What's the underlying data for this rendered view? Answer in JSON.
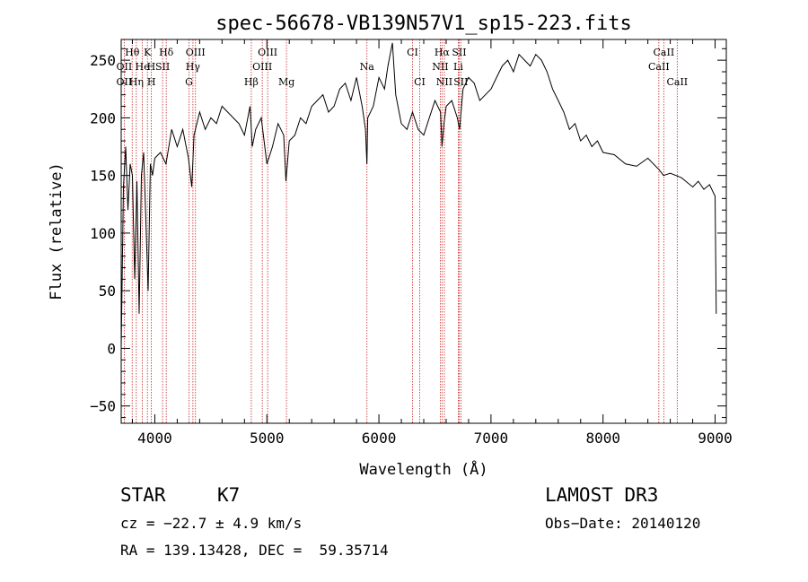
{
  "chart_data": {
    "type": "line",
    "title": "spec-56678-VB139N57V1_sp15-223.fits",
    "xlabel": "Wavelength (Å)",
    "ylabel": "Flux (relative)",
    "xlim": [
      3700,
      9100
    ],
    "ylim": [
      -65,
      268
    ],
    "xticks": [
      4000,
      5000,
      6000,
      7000,
      8000,
      9000
    ],
    "yticks": [
      -50,
      0,
      50,
      100,
      150,
      200,
      250
    ],
    "grid": false,
    "series": [
      {
        "name": "flux",
        "x": [
          3700,
          3720,
          3740,
          3760,
          3780,
          3800,
          3820,
          3840,
          3860,
          3880,
          3900,
          3920,
          3940,
          3960,
          3980,
          4000,
          4050,
          4100,
          4150,
          4200,
          4250,
          4300,
          4330,
          4350,
          4400,
          4450,
          4500,
          4550,
          4600,
          4650,
          4700,
          4750,
          4800,
          4850,
          4870,
          4900,
          4950,
          5000,
          5050,
          5100,
          5150,
          5170,
          5200,
          5250,
          5300,
          5350,
          5400,
          5450,
          5500,
          5550,
          5600,
          5650,
          5700,
          5750,
          5800,
          5850,
          5880,
          5893,
          5900,
          5950,
          6000,
          6050,
          6080,
          6100,
          6120,
          6150,
          6200,
          6250,
          6300,
          6350,
          6400,
          6450,
          6500,
          6550,
          6563,
          6580,
          6600,
          6650,
          6700,
          6720,
          6750,
          6800,
          6850,
          6900,
          6950,
          7000,
          7050,
          7100,
          7150,
          7200,
          7250,
          7300,
          7350,
          7400,
          7450,
          7500,
          7550,
          7600,
          7650,
          7700,
          7750,
          7800,
          7850,
          7900,
          7950,
          8000,
          8100,
          8200,
          8300,
          8400,
          8500,
          8540,
          8600,
          8700,
          8800,
          8850,
          8900,
          8950,
          9000,
          9010
        ],
        "y": [
          0,
          140,
          175,
          120,
          160,
          150,
          60,
          145,
          30,
          150,
          170,
          110,
          50,
          160,
          150,
          165,
          170,
          160,
          190,
          175,
          190,
          165,
          140,
          185,
          205,
          190,
          200,
          195,
          210,
          205,
          200,
          195,
          185,
          210,
          175,
          190,
          200,
          160,
          175,
          195,
          185,
          145,
          180,
          185,
          200,
          195,
          210,
          215,
          220,
          205,
          210,
          225,
          230,
          215,
          235,
          210,
          190,
          160,
          200,
          210,
          235,
          225,
          245,
          255,
          265,
          220,
          195,
          190,
          205,
          190,
          185,
          200,
          215,
          205,
          175,
          195,
          210,
          215,
          200,
          190,
          225,
          235,
          230,
          215,
          220,
          225,
          235,
          245,
          250,
          240,
          255,
          250,
          245,
          255,
          250,
          240,
          225,
          215,
          205,
          190,
          195,
          180,
          185,
          175,
          180,
          170,
          168,
          160,
          158,
          165,
          155,
          150,
          152,
          148,
          140,
          145,
          138,
          142,
          132,
          30
        ]
      }
    ],
    "line_labels": [
      {
        "text": "Hθ",
        "x": 3798,
        "row": 1
      },
      {
        "text": "K",
        "x": 3934,
        "row": 1
      },
      {
        "text": "Hδ",
        "x": 4102,
        "row": 1
      },
      {
        "text": "OIII",
        "x": 4363,
        "row": 1
      },
      {
        "text": "OIII",
        "x": 5007,
        "row": 1
      },
      {
        "text": "CI",
        "x": 6300,
        "row": 1
      },
      {
        "text": "Hα",
        "x": 6563,
        "row": 1
      },
      {
        "text": "SII",
        "x": 6716,
        "row": 1
      },
      {
        "text": "CaII",
        "x": 8542,
        "row": 1
      },
      {
        "text": "OII",
        "x": 3727,
        "row": 2
      },
      {
        "text": "He",
        "x": 3889,
        "row": 2
      },
      {
        "text": "H",
        "x": 3968,
        "row": 2
      },
      {
        "text": "SII",
        "x": 4069,
        "row": 2
      },
      {
        "text": "Hγ",
        "x": 4340,
        "row": 2
      },
      {
        "text": "OIII",
        "x": 4959,
        "row": 2
      },
      {
        "text": "Na",
        "x": 5893,
        "row": 2
      },
      {
        "text": "NII",
        "x": 6548,
        "row": 2
      },
      {
        "text": "Li",
        "x": 6708,
        "row": 2
      },
      {
        "text": "CaII",
        "x": 8498,
        "row": 2
      },
      {
        "text": "OII",
        "x": 3727,
        "row": 3
      },
      {
        "text": "Hη",
        "x": 3835,
        "row": 3
      },
      {
        "text": "H",
        "x": 3970,
        "row": 3
      },
      {
        "text": "G",
        "x": 4305,
        "row": 3
      },
      {
        "text": "Hβ",
        "x": 4861,
        "row": 3
      },
      {
        "text": "Mg",
        "x": 5175,
        "row": 3
      },
      {
        "text": "CI",
        "x": 6364,
        "row": 3
      },
      {
        "text": "NII",
        "x": 6584,
        "row": 3
      },
      {
        "text": "SII",
        "x": 6731,
        "row": 3
      },
      {
        "text": "CaII",
        "x": 8662,
        "row": 3
      }
    ],
    "line_markers": [
      3727,
      3798,
      3835,
      3889,
      3934,
      3968,
      4069,
      4102,
      4305,
      4340,
      4363,
      4861,
      4959,
      5007,
      5175,
      5893,
      6300,
      6364,
      6548,
      6563,
      6584,
      6708,
      6716,
      6731,
      8498,
      8542,
      8662
    ]
  },
  "info": {
    "class": "STAR",
    "subclass": "K7",
    "survey": "LAMOST DR3",
    "cz": "cz = −22.7 ± 4.9 km/s",
    "obs_date": "Obs−Date: 20140120",
    "coords": "RA = 139.13428, DEC =  59.35714"
  }
}
